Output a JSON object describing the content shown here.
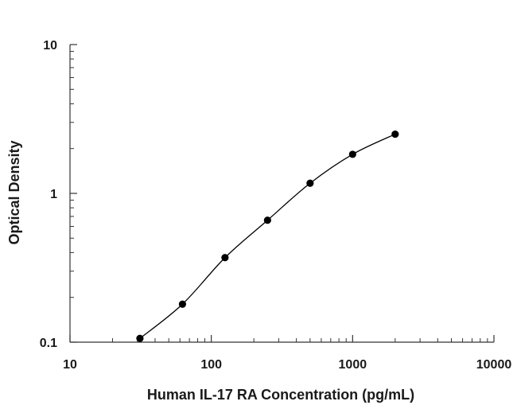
{
  "chart_data": {
    "type": "scatter",
    "title": "",
    "xlabel": "Human IL-17 RA Concentration (pg/mL)",
    "ylabel": "Optical Density",
    "x_scale": "log",
    "y_scale": "log",
    "xlim": [
      10,
      10000
    ],
    "ylim": [
      0.1,
      10
    ],
    "x_ticks": [
      10,
      100,
      1000,
      10000
    ],
    "x_tick_labels": [
      "10",
      "100",
      "1000",
      "10000"
    ],
    "y_ticks": [
      0.1,
      1,
      10
    ],
    "y_tick_labels": [
      "0.1",
      "1",
      "10"
    ],
    "grid": false,
    "legend": "none",
    "series": [
      {
        "x": [
          31.25,
          62.5,
          125,
          250,
          500,
          1000,
          2000
        ],
        "y": [
          0.106,
          0.18,
          0.37,
          0.66,
          1.17,
          1.83,
          2.5
        ],
        "marker": "circle",
        "fit": "smooth-curve",
        "color": "#000000"
      }
    ]
  }
}
